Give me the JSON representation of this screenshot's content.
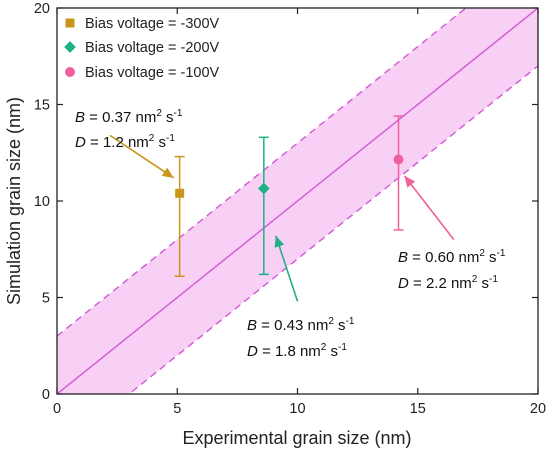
{
  "chart_data": {
    "type": "scatter",
    "xlabel": "Experimental grain size (nm)",
    "ylabel": "Simulation grain size (nm)",
    "xlim": [
      0,
      20
    ],
    "ylim": [
      0,
      20
    ],
    "xticks": [
      0,
      5,
      10,
      15,
      20
    ],
    "yticks": [
      0,
      5,
      10,
      15,
      20
    ],
    "xtick_labels": [
      "0",
      "5",
      "10",
      "15",
      "20"
    ],
    "ytick_labels": [
      "0",
      "5",
      "10",
      "15",
      "20"
    ],
    "legend_position": "top-left",
    "series": [
      {
        "name": "Bias voltage = -300V",
        "marker": "square",
        "color": "#c9961a",
        "x": 5.1,
        "y": 10.4,
        "y_low": 6.1,
        "y_high": 12.3
      },
      {
        "name": "Bias voltage = -200V",
        "marker": "diamond",
        "color": "#1fb086",
        "x": 8.6,
        "y": 10.65,
        "y_low": 6.2,
        "y_high": 13.3
      },
      {
        "name": "Bias voltage = -100V",
        "marker": "circle",
        "color": "#f0609a",
        "x": 14.2,
        "y": 12.15,
        "y_low": 8.5,
        "y_high": 14.4
      }
    ],
    "reference_line": {
      "type": "y=x",
      "color": "#d45fd6"
    },
    "band": {
      "offset": 3,
      "fill": "#f7c8f5",
      "edge_color": "#d45fd6",
      "edge_style": "dashed"
    },
    "annotations": [
      {
        "B_label": "B",
        "B_value": " = 0.37 nm",
        "D_label": "D",
        "D_value": " = 1.2 nm",
        "unit_exp": "2",
        "unit_tail": " s",
        "unit_tail_exp": "-1",
        "color": "#c9961a",
        "target_series": 0
      },
      {
        "B_label": "B",
        "B_value": " = 0.43 nm",
        "D_label": "D",
        "D_value": " = 1.8 nm",
        "unit_exp": "2",
        "unit_tail": " s",
        "unit_tail_exp": "-1",
        "color": "#1fb086",
        "target_series": 1
      },
      {
        "B_label": "B",
        "B_value": " = 0.60 nm",
        "D_label": "D",
        "D_value": " = 2.2 nm",
        "unit_exp": "2",
        "unit_tail": " s",
        "unit_tail_exp": "-1",
        "color": "#f0609a",
        "target_series": 2
      }
    ]
  }
}
